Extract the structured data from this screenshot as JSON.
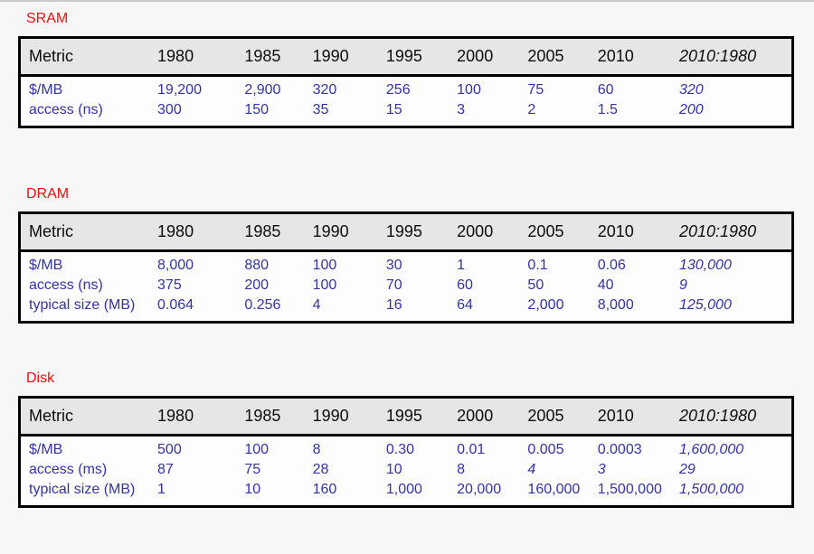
{
  "colors": {
    "page_bg": "#f7f7f7",
    "top_edge_line": "#c9c9c9",
    "label_red": "#f20d0d",
    "data_blue": "#3333a3",
    "header_bg": "#e6e6e6",
    "table_body_bg": "#fdfdfd",
    "border_black": "#000000"
  },
  "columns": [
    "Metric",
    "1980",
    "1985",
    "1990",
    "1995",
    "2000",
    "2005",
    "2010",
    "2010:1980"
  ],
  "sections": [
    {
      "id": "sram",
      "title": "SRAM",
      "rows": [
        {
          "metric": "$/MB",
          "cells": [
            "19,200",
            "2,900",
            "320",
            "256",
            "100",
            "75",
            "60",
            "320"
          ],
          "italics": [
            7
          ]
        },
        {
          "metric": "access (ns)",
          "cells": [
            "300",
            "150",
            "35",
            "15",
            "3",
            "2",
            "1.5",
            "200"
          ],
          "italics": [
            7
          ]
        }
      ]
    },
    {
      "id": "dram",
      "title": "DRAM",
      "rows": [
        {
          "metric": "$/MB",
          "cells": [
            "8,000",
            "880",
            "100",
            "30",
            "1",
            "0.1",
            "0.06",
            "130,000"
          ],
          "italics": [
            7
          ]
        },
        {
          "metric": "access (ns)",
          "cells": [
            "375",
            "200",
            "100",
            "70",
            "60",
            "50",
            "40",
            "9"
          ],
          "italics": [
            7
          ]
        },
        {
          "metric": "typical size (MB)",
          "cells": [
            "0.064",
            "0.256",
            "4",
            "16",
            "64",
            "2,000",
            "8,000",
            "125,000"
          ],
          "italics": [
            7
          ]
        }
      ]
    },
    {
      "id": "disk",
      "title": "Disk",
      "rows": [
        {
          "metric": "$/MB",
          "cells": [
            "500",
            "100",
            "8",
            "0.30",
            "0.01",
            "0.005",
            "0.0003",
            "1,600,000"
          ],
          "italics": [
            7
          ]
        },
        {
          "metric": "access (ms)",
          "cells": [
            "87",
            "75",
            "28",
            "10",
            "8",
            "4",
            "3",
            "29"
          ],
          "italics": [
            5,
            6,
            7
          ]
        },
        {
          "metric": "typical size (MB)",
          "cells": [
            "1",
            "10",
            "160",
            "1,000",
            "20,000",
            "160,000",
            "1,500,000",
            "1,500,000"
          ],
          "italics": [
            7
          ]
        }
      ]
    }
  ]
}
